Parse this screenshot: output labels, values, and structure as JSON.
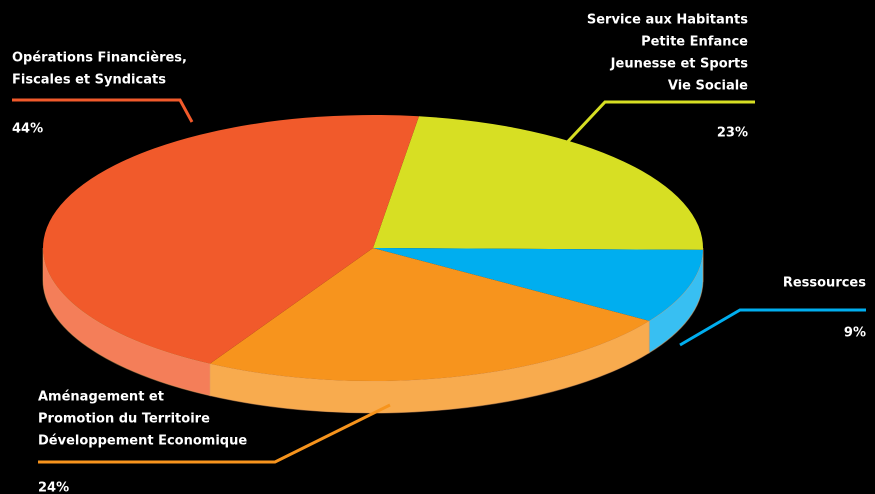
{
  "chart_data": {
    "type": "pie",
    "categories": [
      [
        "Service aux Habitants",
        "Petite Enfance",
        "Jeunesse et Sports",
        "Vie Sociale"
      ],
      [
        "Ressources"
      ],
      [
        "Aménagement et",
        "Promotion du Territoire",
        "Développement Economique"
      ],
      [
        "Opérations Financières,",
        "Fiscales et Syndicats"
      ]
    ],
    "values": [
      23,
      9,
      24,
      44
    ],
    "value_labels": [
      "23%",
      "9%",
      "24%",
      "44%"
    ],
    "colors": [
      "#d7df23",
      "#00aeef",
      "#f7941d",
      "#f15a2b"
    ]
  }
}
